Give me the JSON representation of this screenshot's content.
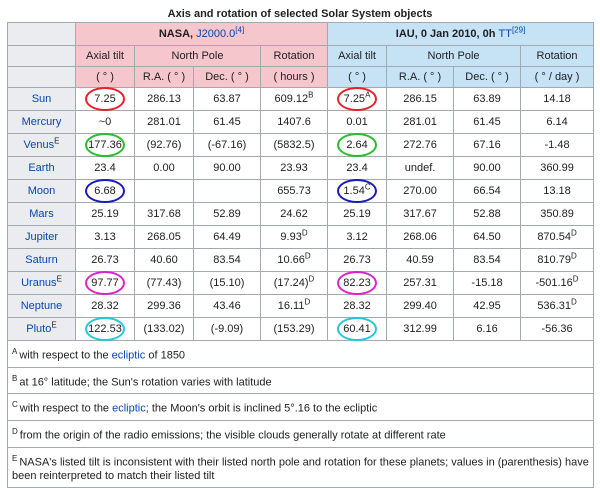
{
  "caption": "Axis and rotation of selected Solar System objects",
  "header": {
    "nasa_label": "NASA, ",
    "nasa_epoch": "J2000.0",
    "nasa_ref": "[4]",
    "iau_label": "IAU, 0 Jan 2010, 0h ",
    "iau_tt": "TT",
    "iau_ref": "[29]"
  },
  "columns": {
    "axial_tilt": "Axial tilt",
    "north_pole": "North Pole",
    "rotation": "Rotation",
    "deg": "( ° )",
    "ra": "R.A. ( ° )",
    "dec": "Dec. ( ° )",
    "hours": "( hours )",
    "deg_day": "( ° / day )"
  },
  "rows": [
    {
      "name": "Sun",
      "sup": "",
      "n_tilt": "7.25",
      "n_ra": "286.13",
      "n_dec": "63.87",
      "n_rot": "609.12",
      "n_rot_sup": "B",
      "i_tilt": "7.25",
      "i_tilt_sup": "A",
      "i_ra": "286.15",
      "i_dec": "63.89",
      "i_rot": "14.18",
      "i_rot_sup": "",
      "ring": "#e8202a"
    },
    {
      "name": "Mercury",
      "sup": "",
      "n_tilt": "~0",
      "n_ra": "281.01",
      "n_dec": "61.45",
      "n_rot": "1407.6",
      "n_rot_sup": "",
      "i_tilt": "0.01",
      "i_tilt_sup": "",
      "i_ra": "281.01",
      "i_dec": "61.45",
      "i_rot": "6.14",
      "i_rot_sup": "",
      "ring": ""
    },
    {
      "name": "Venus",
      "sup": "E",
      "n_tilt": "177.36",
      "n_ra": "(92.76)",
      "n_dec": "(-67.16)",
      "n_rot": "(5832.5)",
      "n_rot_sup": "",
      "i_tilt": "2.64",
      "i_tilt_sup": "",
      "i_ra": "272.76",
      "i_dec": "67.16",
      "i_rot": "-1.48",
      "i_rot_sup": "",
      "ring": "#22c02a"
    },
    {
      "name": "Earth",
      "sup": "",
      "n_tilt": "23.4",
      "n_ra": "0.00",
      "n_dec": "90.00",
      "n_rot": "23.93",
      "n_rot_sup": "",
      "i_tilt": "23.4",
      "i_tilt_sup": "",
      "i_ra": "undef.",
      "i_dec": "90.00",
      "i_rot": "360.99",
      "i_rot_sup": "",
      "ring": ""
    },
    {
      "name": "Moon",
      "sup": "",
      "n_tilt": "6.68",
      "n_ra": "",
      "n_dec": "",
      "n_rot": "655.73",
      "n_rot_sup": "",
      "i_tilt": "1.54",
      "i_tilt_sup": "C",
      "i_ra": "270.00",
      "i_dec": "66.54",
      "i_rot": "13.18",
      "i_rot_sup": "",
      "ring": "#1a1ab8"
    },
    {
      "name": "Mars",
      "sup": "",
      "n_tilt": "25.19",
      "n_ra": "317.68",
      "n_dec": "52.89",
      "n_rot": "24.62",
      "n_rot_sup": "",
      "i_tilt": "25.19",
      "i_tilt_sup": "",
      "i_ra": "317.67",
      "i_dec": "52.88",
      "i_rot": "350.89",
      "i_rot_sup": "",
      "ring": ""
    },
    {
      "name": "Jupiter",
      "sup": "",
      "n_tilt": "3.13",
      "n_ra": "268.05",
      "n_dec": "64.49",
      "n_rot": "9.93",
      "n_rot_sup": "D",
      "i_tilt": "3.12",
      "i_tilt_sup": "",
      "i_ra": "268.06",
      "i_dec": "64.50",
      "i_rot": "870.54",
      "i_rot_sup": "D",
      "ring": ""
    },
    {
      "name": "Saturn",
      "sup": "",
      "n_tilt": "26.73",
      "n_ra": "40.60",
      "n_dec": "83.54",
      "n_rot": "10.66",
      "n_rot_sup": "D",
      "i_tilt": "26.73",
      "i_tilt_sup": "",
      "i_ra": "40.59",
      "i_dec": "83.54",
      "i_rot": "810.79",
      "i_rot_sup": "D",
      "ring": ""
    },
    {
      "name": "Uranus",
      "sup": "E",
      "n_tilt": "97.77",
      "n_ra": "(77.43)",
      "n_dec": "(15.10)",
      "n_rot": "(17.24)",
      "n_rot_sup": "D",
      "i_tilt": "82.23",
      "i_tilt_sup": "",
      "i_ra": "257.31",
      "i_dec": "-15.18",
      "i_rot": "-501.16",
      "i_rot_sup": "D",
      "ring": "#e020c8"
    },
    {
      "name": "Neptune",
      "sup": "",
      "n_tilt": "28.32",
      "n_ra": "299.36",
      "n_dec": "43.46",
      "n_rot": "16.11",
      "n_rot_sup": "D",
      "i_tilt": "28.32",
      "i_tilt_sup": "",
      "i_ra": "299.40",
      "i_dec": "42.95",
      "i_rot": "536.31",
      "i_rot_sup": "D",
      "ring": ""
    },
    {
      "name": "Pluto",
      "sup": "E",
      "n_tilt": "122.53",
      "n_ra": "(133.02)",
      "n_dec": "(-9.09)",
      "n_rot": "(153.29)",
      "n_rot_sup": "",
      "i_tilt": "60.41",
      "i_tilt_sup": "",
      "i_ra": "312.99",
      "i_dec": "6.16",
      "i_rot": "-56.36",
      "i_rot_sup": "",
      "ring": "#20c8d8"
    }
  ],
  "notes": [
    {
      "letter": "A",
      "pre": "with respect to the ",
      "link": "ecliptic",
      "post": " of 1850"
    },
    {
      "letter": "B",
      "pre": "at 16° latitude; the Sun's rotation varies with latitude",
      "link": "",
      "post": ""
    },
    {
      "letter": "C",
      "pre": "with respect to the ",
      "link": "ecliptic",
      "post": "; the Moon's orbit is inclined 5°.16 to the ecliptic"
    },
    {
      "letter": "D",
      "pre": "from the origin of the radio emissions; the visible clouds generally rotate at different rate",
      "link": "",
      "post": ""
    },
    {
      "letter": "E",
      "pre": "NASA's listed tilt is inconsistent with their listed north pole and rotation for these planets; values in (parenthesis) have been reinterpreted to match their listed tilt",
      "link": "",
      "post": ""
    }
  ],
  "colors": {
    "nasa_header": "#f5c6cb",
    "iau_header": "#c6e2f5",
    "link": "#0645ad"
  }
}
